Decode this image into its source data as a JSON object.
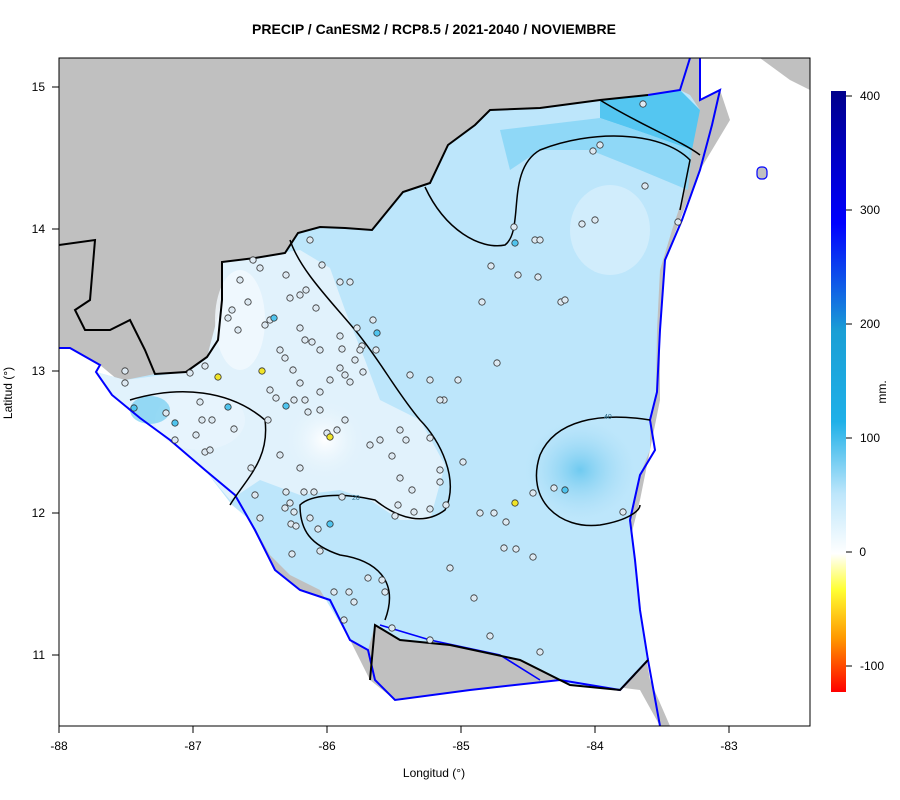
{
  "title": "PRECIP / CanESM2 / RCP8.5 / 2021-2040 / NOVIEMBRE",
  "map": {
    "xlabel": "Longitud (°)",
    "ylabel": "Latitud (°)",
    "lon_range": [
      -88,
      -82.4
    ],
    "lat_range": [
      10.5,
      15.2
    ],
    "lon_ticks": [
      "-88",
      "-87",
      "-86",
      "-85",
      "-84",
      "-83"
    ],
    "lat_ticks": [
      "11",
      "12",
      "13",
      "14",
      "15"
    ],
    "contour_labels": [
      "20",
      "40"
    ],
    "background_land_color": "#c0c0c0",
    "coastline_color": "#0000ff",
    "border_color": "#000000"
  },
  "legend": {
    "unit": "mm.",
    "ticks": [
      "400",
      "300",
      "200",
      "100",
      "0",
      "-100"
    ],
    "range": [
      -120,
      400
    ],
    "colors": [
      "#ff0000",
      "#ffd700",
      "#ffff33",
      "#ffffff",
      "#bde6fb",
      "#00bfff",
      "#1a9fd5",
      "#0000ff",
      "#00008b"
    ]
  },
  "stations": {
    "count_note": "",
    "fill_default": "#dde9f2",
    "fill_high": "#4fc4ee",
    "fill_low": "#f0e428"
  }
}
